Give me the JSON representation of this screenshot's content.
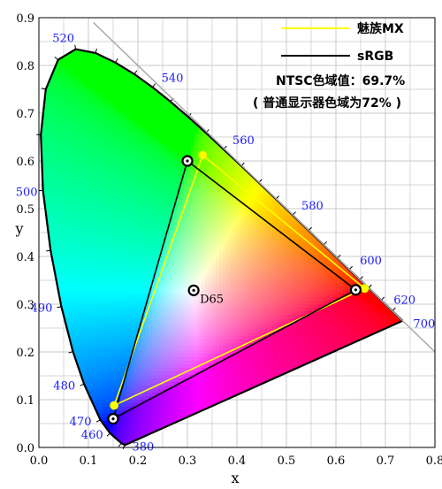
{
  "chart_data": {
    "type": "scatter",
    "xlabel": "x",
    "ylabel": "y",
    "xlim": [
      0,
      0.8
    ],
    "ylim": [
      0,
      0.9
    ],
    "xticks": [
      "0.0",
      "0.1",
      "0.2",
      "0.3",
      "0.4",
      "0.5",
      "0.6",
      "0.7",
      "0.8"
    ],
    "yticks": [
      "0.0",
      "0.1",
      "0.2",
      "0.3",
      "0.4",
      "0.5",
      "0.6",
      "0.7",
      "0.8",
      "0.9"
    ],
    "grid": true,
    "legend_position": "top-right",
    "spectral_locus": [
      [
        0.1741,
        0.005
      ],
      [
        0.1738,
        0.0049
      ],
      [
        0.1666,
        0.0089
      ],
      [
        0.144,
        0.0297
      ],
      [
        0.1241,
        0.0578
      ],
      [
        0.0913,
        0.1327
      ],
      [
        0.0687,
        0.2007
      ],
      [
        0.0454,
        0.295
      ],
      [
        0.0235,
        0.4127
      ],
      [
        0.0082,
        0.5384
      ],
      [
        0.0039,
        0.6548
      ],
      [
        0.0139,
        0.7502
      ],
      [
        0.0389,
        0.812
      ],
      [
        0.0743,
        0.8338
      ],
      [
        0.1142,
        0.8262
      ],
      [
        0.1547,
        0.8059
      ],
      [
        0.1929,
        0.7816
      ],
      [
        0.2296,
        0.7543
      ],
      [
        0.2658,
        0.7243
      ],
      [
        0.3016,
        0.6923
      ],
      [
        0.3373,
        0.6589
      ],
      [
        0.3731,
        0.6245
      ],
      [
        0.4087,
        0.5896
      ],
      [
        0.4441,
        0.5547
      ],
      [
        0.4788,
        0.5202
      ],
      [
        0.5125,
        0.4866
      ],
      [
        0.5448,
        0.4544
      ],
      [
        0.5752,
        0.4242
      ],
      [
        0.6029,
        0.3965
      ],
      [
        0.627,
        0.3725
      ],
      [
        0.6482,
        0.3514
      ],
      [
        0.6658,
        0.334
      ],
      [
        0.6915,
        0.3083
      ],
      [
        0.714,
        0.2859
      ],
      [
        0.7347,
        0.2653
      ]
    ],
    "wavelength_labels": [
      {
        "label": "380",
        "x": 0.1741,
        "y": 0.005
      },
      {
        "label": "460",
        "x": 0.144,
        "y": 0.0297
      },
      {
        "label": "470",
        "x": 0.1241,
        "y": 0.0578
      },
      {
        "label": "480",
        "x": 0.0913,
        "y": 0.1327
      },
      {
        "label": "490",
        "x": 0.0454,
        "y": 0.295
      },
      {
        "label": "500",
        "x": 0.0082,
        "y": 0.5384
      },
      {
        "label": "520",
        "x": 0.0743,
        "y": 0.8338
      },
      {
        "label": "540",
        "x": 0.2296,
        "y": 0.7543
      },
      {
        "label": "560",
        "x": 0.3731,
        "y": 0.6245
      },
      {
        "label": "580",
        "x": 0.5125,
        "y": 0.4866
      },
      {
        "label": "600",
        "x": 0.627,
        "y": 0.3725
      },
      {
        "label": "620",
        "x": 0.6915,
        "y": 0.3083
      },
      {
        "label": "700",
        "x": 0.7347,
        "y": 0.2653
      }
    ],
    "series": [
      {
        "name": "魅族MX",
        "color": "#ffff00",
        "points": [
          [
            0.331,
            0.612
          ],
          [
            0.658,
            0.333
          ],
          [
            0.152,
            0.088
          ]
        ]
      },
      {
        "name": "sRGB",
        "color": "#000000",
        "points": [
          [
            0.3,
            0.6
          ],
          [
            0.64,
            0.33
          ],
          [
            0.15,
            0.06
          ]
        ]
      }
    ],
    "white_point": {
      "label": "D65",
      "x": 0.3127,
      "y": 0.329
    },
    "annotations": [
      "NTSC色域值：69.7%",
      "( 普通显示器色域为72% )"
    ]
  }
}
